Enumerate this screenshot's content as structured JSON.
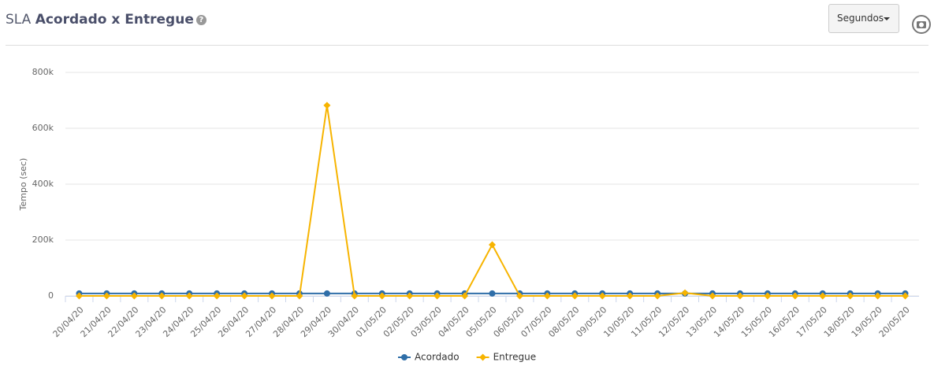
{
  "header": {
    "title_light": "SLA",
    "title_bold": "Acordado x Entregue",
    "dropdown": "Segundos"
  },
  "chart_data": {
    "type": "line",
    "y_label": "Tempo (sec)",
    "categories": [
      "20/04/20",
      "21/04/20",
      "22/04/20",
      "23/04/20",
      "24/04/20",
      "25/04/20",
      "26/04/20",
      "27/04/20",
      "28/04/20",
      "29/04/20",
      "30/04/20",
      "01/05/20",
      "02/05/20",
      "03/05/20",
      "04/05/20",
      "05/05/20",
      "06/05/20",
      "07/05/20",
      "08/05/20",
      "09/05/20",
      "10/05/20",
      "11/05/20",
      "12/05/20",
      "13/05/20",
      "14/05/20",
      "15/05/20",
      "16/05/20",
      "17/05/20",
      "18/05/20",
      "19/05/20",
      "20/05/20"
    ],
    "series": [
      {
        "name": "Acordado",
        "color": "#2f6ea8",
        "marker": "circle",
        "values": [
          8640,
          8640,
          8640,
          8640,
          8640,
          8640,
          8640,
          8640,
          8640,
          8640,
          8640,
          8640,
          8640,
          8640,
          8640,
          8640,
          8640,
          8640,
          8640,
          8640,
          8640,
          8640,
          8640,
          8640,
          8640,
          8640,
          8640,
          8640,
          8640,
          8640,
          8640
        ]
      },
      {
        "name": "Entregue",
        "color": "#f7b400",
        "marker": "diamond",
        "values": [
          0,
          0,
          0,
          0,
          0,
          0,
          0,
          0,
          0,
          682000,
          0,
          0,
          0,
          0,
          0,
          183000,
          0,
          0,
          0,
          0,
          0,
          0,
          11000,
          0,
          0,
          0,
          0,
          0,
          0,
          0,
          0
        ]
      }
    ],
    "ylim": [
      0,
      800000
    ],
    "yticks": [
      0,
      {
        "value": 200000,
        "label": "200k"
      },
      {
        "value": 400000,
        "label": "400k"
      },
      {
        "value": 600000,
        "label": "600k"
      },
      {
        "value": 800000,
        "label": "800k"
      }
    ],
    "grid": true
  }
}
